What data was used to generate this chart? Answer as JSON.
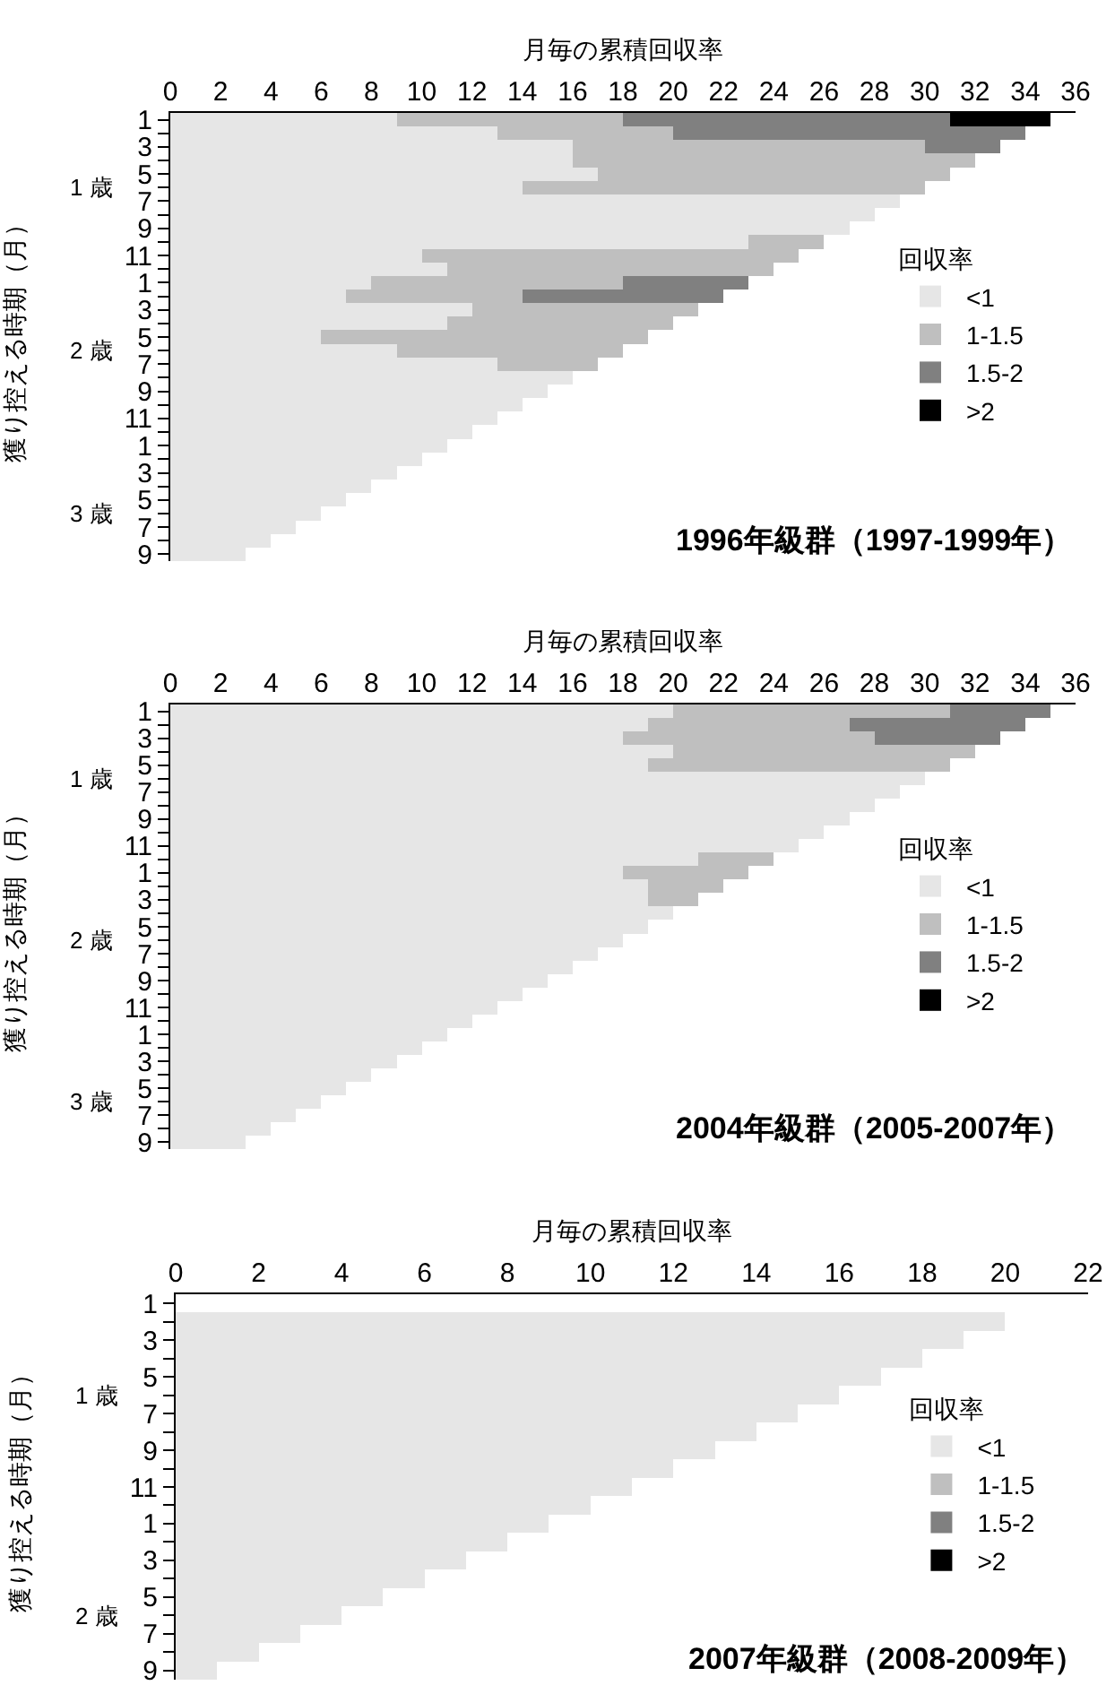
{
  "chart_data": [
    {
      "type": "bar",
      "orientation": "horizontal",
      "stacked": true,
      "title": "1996年級群（1997-1999年）",
      "xlabel": "月毎の累積回収率",
      "ylabel": "獲り控える時期（月）",
      "legend_title": "回収率",
      "legend": "right",
      "xlim": [
        0,
        36
      ],
      "xticks": [
        0,
        2,
        4,
        6,
        8,
        10,
        12,
        14,
        16,
        18,
        20,
        22,
        24,
        26,
        28,
        30,
        32,
        34,
        36
      ],
      "categories": [
        "1",
        null,
        "3",
        null,
        "5",
        null,
        "7",
        null,
        "9",
        null,
        "11",
        null,
        "1",
        null,
        "3",
        null,
        "5",
        null,
        "7",
        null,
        "9",
        null,
        "11",
        null,
        "1",
        null,
        "3",
        null,
        "5",
        null,
        "7",
        null,
        "9"
      ],
      "y2_categories": [
        null,
        null,
        null,
        null,
        null,
        "1 歳",
        null,
        null,
        null,
        null,
        null,
        null,
        null,
        null,
        null,
        null,
        null,
        "2 歳",
        null,
        null,
        null,
        null,
        null,
        null,
        null,
        null,
        null,
        null,
        null,
        "3 歳",
        null,
        null,
        null
      ],
      "series": [
        {
          "name": "<1",
          "color": "#e6e6e6",
          "values": [
            9,
            13,
            16,
            16,
            17,
            14,
            29,
            28,
            27,
            23,
            10,
            11,
            8,
            7,
            12,
            11,
            6,
            9,
            13,
            16,
            15,
            14,
            13,
            12,
            11,
            10,
            9,
            8,
            7,
            6,
            5,
            4,
            3
          ]
        },
        {
          "name": "1-1.5",
          "color": "#bfbfbf",
          "values": [
            9,
            7,
            14,
            16,
            14,
            16,
            null,
            null,
            null,
            3,
            15,
            13,
            10,
            7,
            9,
            9,
            13,
            9,
            4,
            null,
            null,
            null,
            null,
            null,
            null,
            null,
            null,
            null,
            null,
            null,
            null,
            null,
            null
          ]
        },
        {
          "name": "1.5-2",
          "color": "#808080",
          "values": [
            13,
            14,
            3,
            null,
            null,
            null,
            null,
            null,
            null,
            null,
            null,
            null,
            5,
            8,
            null,
            null,
            null,
            null,
            null,
            null,
            null,
            null,
            null,
            null,
            null,
            null,
            null,
            null,
            null,
            null,
            null,
            null,
            null
          ]
        },
        {
          "name": ">2",
          "color": "#000000",
          "values": [
            4,
            null,
            null,
            null,
            null,
            null,
            null,
            null,
            null,
            null,
            null,
            null,
            null,
            null,
            null,
            null,
            null,
            null,
            null,
            null,
            null,
            null,
            null,
            null,
            null,
            null,
            null,
            null,
            null,
            null,
            null,
            null,
            null
          ]
        }
      ]
    },
    {
      "type": "bar",
      "orientation": "horizontal",
      "stacked": true,
      "title": "2004年級群（2005-2007年）",
      "xlabel": "月毎の累積回収率",
      "ylabel": "獲り控える時期（月）",
      "legend_title": "回収率",
      "legend": "right",
      "xlim": [
        0,
        36
      ],
      "xticks": [
        0,
        2,
        4,
        6,
        8,
        10,
        12,
        14,
        16,
        18,
        20,
        22,
        24,
        26,
        28,
        30,
        32,
        34,
        36
      ],
      "categories": [
        "1",
        null,
        "3",
        null,
        "5",
        null,
        "7",
        null,
        "9",
        null,
        "11",
        null,
        "1",
        null,
        "3",
        null,
        "5",
        null,
        "7",
        null,
        "9",
        null,
        "11",
        null,
        "1",
        null,
        "3",
        null,
        "5",
        null,
        "7",
        null,
        "9"
      ],
      "y2_categories": [
        null,
        null,
        null,
        null,
        null,
        "1 歳",
        null,
        null,
        null,
        null,
        null,
        null,
        null,
        null,
        null,
        null,
        null,
        "2 歳",
        null,
        null,
        null,
        null,
        null,
        null,
        null,
        null,
        null,
        null,
        null,
        "3 歳",
        null,
        null,
        null
      ],
      "series": [
        {
          "name": "<1",
          "color": "#e6e6e6",
          "values": [
            20,
            19,
            18,
            20,
            19,
            30,
            29,
            28,
            27,
            26,
            25,
            21,
            18,
            19,
            19,
            20,
            19,
            18,
            17,
            16,
            15,
            14,
            13,
            12,
            11,
            10,
            9,
            8,
            7,
            6,
            5,
            4,
            3
          ]
        },
        {
          "name": "1-1.5",
          "color": "#bfbfbf",
          "values": [
            11,
            8,
            10,
            12,
            12,
            null,
            null,
            null,
            null,
            null,
            null,
            3,
            5,
            3,
            2,
            null,
            null,
            null,
            null,
            null,
            null,
            null,
            null,
            null,
            null,
            null,
            null,
            null,
            null,
            null,
            null,
            null,
            null
          ]
        },
        {
          "name": "1.5-2",
          "color": "#808080",
          "values": [
            4,
            7,
            5,
            null,
            null,
            null,
            null,
            null,
            null,
            null,
            null,
            null,
            null,
            null,
            null,
            null,
            null,
            null,
            null,
            null,
            null,
            null,
            null,
            null,
            null,
            null,
            null,
            null,
            null,
            null,
            null,
            null,
            null
          ]
        },
        {
          "name": ">2",
          "color": "#000000",
          "values": [
            null,
            null,
            null,
            null,
            null,
            null,
            null,
            null,
            null,
            null,
            null,
            null,
            null,
            null,
            null,
            null,
            null,
            null,
            null,
            null,
            null,
            null,
            null,
            null,
            null,
            null,
            null,
            null,
            null,
            null,
            null,
            null,
            null
          ]
        }
      ]
    },
    {
      "type": "bar",
      "orientation": "horizontal",
      "stacked": true,
      "title": "2007年級群（2008-2009年）",
      "xlabel": "月毎の累積回収率",
      "ylabel": "獲り控える時期（月）",
      "legend_title": "回収率",
      "legend": "right",
      "xlim": [
        0,
        22
      ],
      "xticks": [
        0,
        2,
        4,
        6,
        8,
        10,
        12,
        14,
        16,
        18,
        20,
        22
      ],
      "categories": [
        "1",
        null,
        "3",
        null,
        "5",
        null,
        "7",
        null,
        "9",
        null,
        "11",
        null,
        "1",
        null,
        "3",
        null,
        "5",
        null,
        "7",
        null,
        "9"
      ],
      "y2_categories": [
        null,
        null,
        null,
        null,
        null,
        "1 歳",
        null,
        null,
        null,
        null,
        null,
        null,
        null,
        null,
        null,
        null,
        null,
        "2 歳",
        null,
        null,
        null
      ],
      "series": [
        {
          "name": "<1",
          "color": "#e6e6e6",
          "values": [
            null,
            20,
            19,
            18,
            17,
            16,
            15,
            14,
            13,
            12,
            11,
            10,
            9,
            8,
            7,
            6,
            5,
            4,
            3,
            2,
            1
          ]
        },
        {
          "name": "1-1.5",
          "color": "#bfbfbf",
          "values": [
            null,
            null,
            null,
            null,
            null,
            null,
            null,
            null,
            null,
            null,
            null,
            null,
            null,
            null,
            null,
            null,
            null,
            null,
            null,
            null,
            null
          ]
        },
        {
          "name": "1.5-2",
          "color": "#808080",
          "values": [
            null,
            null,
            null,
            null,
            null,
            null,
            null,
            null,
            null,
            null,
            null,
            null,
            null,
            null,
            null,
            null,
            null,
            null,
            null,
            null,
            null
          ]
        },
        {
          "name": ">2",
          "color": "#000000",
          "values": [
            null,
            null,
            null,
            null,
            null,
            null,
            null,
            null,
            null,
            null,
            null,
            null,
            null,
            null,
            null,
            null,
            null,
            null,
            null,
            null,
            null
          ]
        }
      ]
    }
  ]
}
